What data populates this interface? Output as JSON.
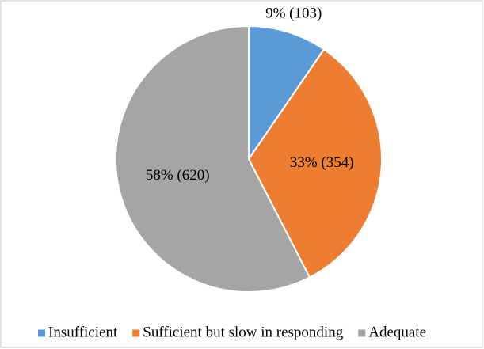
{
  "chart_data": {
    "type": "pie",
    "categories": [
      "Insufficient",
      "Sufficient but slow in responding",
      "Adequate"
    ],
    "values": [
      103,
      354,
      620
    ],
    "value_labels": [
      "9% (103)",
      "33% (354)",
      "58% (620)"
    ],
    "colors": [
      "#5b9bd5",
      "#ed7d31",
      "#a5a5a5"
    ],
    "legend": "bottom"
  }
}
